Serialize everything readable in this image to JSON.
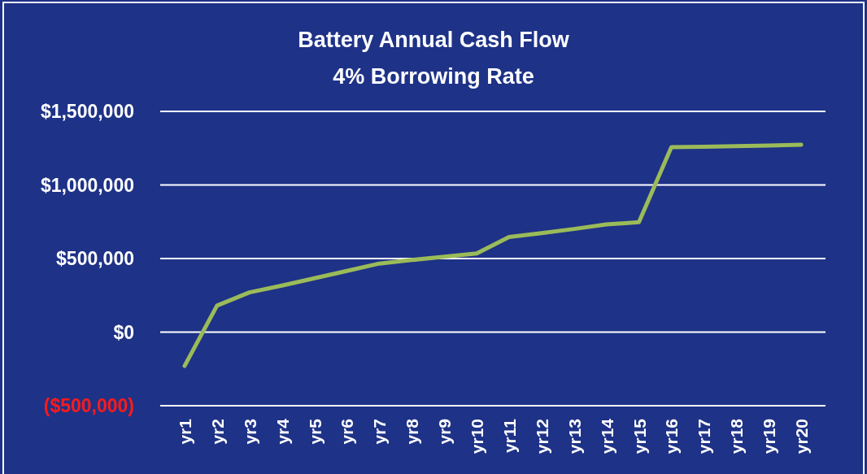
{
  "chart_data": {
    "type": "line",
    "title": "Battery Annual Cash Flow",
    "subtitle": "4% Borrowing Rate",
    "categories": [
      "yr1",
      "yr2",
      "yr3",
      "yr4",
      "yr5",
      "yr6",
      "yr7",
      "yr8",
      "yr9",
      "yr10",
      "yr11",
      "yr12",
      "yr13",
      "yr14",
      "yr15",
      "yr16",
      "yr17",
      "yr18",
      "yr19",
      "yr20"
    ],
    "series": [
      {
        "color": "#9bbb59",
        "values": [
          -230000,
          180000,
          270000,
          316000,
          366000,
          416000,
          466000,
          490000,
          512000,
          534000,
          646000,
          673000,
          701000,
          732000,
          747000,
          1257000,
          1260000,
          1264000,
          1268000,
          1273000
        ]
      }
    ],
    "ylim": [
      -500000,
      1500000
    ],
    "yticks": [
      {
        "value": -500000,
        "label": "($500,000)"
      },
      {
        "value": 0,
        "label": "$0"
      },
      {
        "value": 500000,
        "label": "$500,000"
      },
      {
        "value": 1000000,
        "label": "$1,000,000"
      },
      {
        "value": 1500000,
        "label": "$1,500,000"
      }
    ],
    "grid": "y",
    "marker": "none",
    "line_style": "solid"
  }
}
